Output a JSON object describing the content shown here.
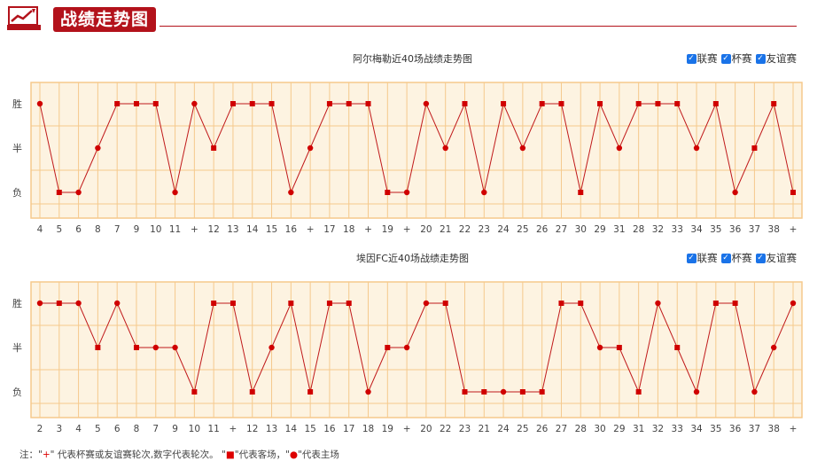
{
  "header": {
    "title": "战绩走势图",
    "icon": "trend-chart-icon"
  },
  "filters": [
    {
      "label": "联赛",
      "checked": true
    },
    {
      "label": "杯赛",
      "checked": true
    },
    {
      "label": "友谊赛",
      "checked": true
    }
  ],
  "note": {
    "prefix": "注：\"",
    "plus": "+",
    "text1": "\" 代表杯赛或友谊赛轮次,数字代表轮次。 \"",
    "square": "■",
    "text2": "\"代表客场，\"",
    "circle": "●",
    "text3": "\"代表主场"
  },
  "colors": {
    "accent": "#b3121b",
    "plot_bg": "#fdf3e1",
    "grid": "#f5c98c",
    "line": "#c0191a"
  },
  "chart_data": [
    {
      "type": "line",
      "title": "阿尔梅勒近40场战绩走势图",
      "y_categories": [
        "负",
        "半",
        "胜"
      ],
      "x": [
        "4",
        "5",
        "6",
        "8",
        "7",
        "9",
        "10",
        "11",
        "+",
        "12",
        "13",
        "14",
        "15",
        "16",
        "+",
        "17",
        "18",
        "+",
        "19",
        "+",
        "20",
        "21",
        "22",
        "23",
        "24",
        "25",
        "26",
        "27",
        "30",
        "29",
        "31",
        "28",
        "32",
        "33",
        "34",
        "35",
        "36",
        "37",
        "38",
        "+"
      ],
      "results": [
        "胜",
        "负",
        "负",
        "半",
        "胜",
        "胜",
        "胜",
        "负",
        "胜",
        "半",
        "胜",
        "胜",
        "胜",
        "负",
        "半",
        "胜",
        "胜",
        "胜",
        "负",
        "负",
        "胜",
        "半",
        "胜",
        "负",
        "胜",
        "半",
        "胜",
        "胜",
        "负",
        "胜",
        "半",
        "胜",
        "胜",
        "胜",
        "半",
        "胜",
        "负",
        "半",
        "胜",
        "负"
      ],
      "venue": [
        "home",
        "away",
        "home",
        "home",
        "away",
        "away",
        "away",
        "home",
        "home",
        "away",
        "away",
        "away",
        "away",
        "home",
        "home",
        "away",
        "away",
        "away",
        "away",
        "home",
        "home",
        "home",
        "away",
        "home",
        "away",
        "home",
        "away",
        "away",
        "away",
        "away",
        "home",
        "away",
        "away",
        "away",
        "home",
        "away",
        "home",
        "away",
        "away",
        "away"
      ]
    },
    {
      "type": "line",
      "title": "埃因FC近40场战绩走势图",
      "y_categories": [
        "负",
        "半",
        "胜"
      ],
      "x": [
        "2",
        "3",
        "4",
        "5",
        "6",
        "8",
        "7",
        "9",
        "10",
        "11",
        "+",
        "12",
        "13",
        "14",
        "15",
        "16",
        "17",
        "18",
        "19",
        "+",
        "20",
        "22",
        "23",
        "21",
        "24",
        "25",
        "26",
        "27",
        "28",
        "30",
        "29",
        "31",
        "32",
        "33",
        "34",
        "35",
        "36",
        "37",
        "38",
        "+"
      ],
      "results": [
        "胜",
        "胜",
        "胜",
        "半",
        "胜",
        "半",
        "半",
        "半",
        "负",
        "胜",
        "胜",
        "负",
        "半",
        "胜",
        "负",
        "胜",
        "胜",
        "负",
        "半",
        "半",
        "胜",
        "胜",
        "负",
        "负",
        "负",
        "负",
        "负",
        "胜",
        "胜",
        "半",
        "半",
        "负",
        "胜",
        "半",
        "负",
        "胜",
        "胜",
        "负",
        "半",
        "胜"
      ],
      "venue": [
        "home",
        "away",
        "home",
        "away",
        "home",
        "away",
        "home",
        "home",
        "away",
        "away",
        "away",
        "away",
        "home",
        "away",
        "away",
        "away",
        "away",
        "home",
        "away",
        "home",
        "home",
        "away",
        "away",
        "away",
        "home",
        "away",
        "away",
        "away",
        "away",
        "home",
        "away",
        "away",
        "home",
        "away",
        "home",
        "away",
        "away",
        "home",
        "home",
        "home"
      ]
    }
  ]
}
